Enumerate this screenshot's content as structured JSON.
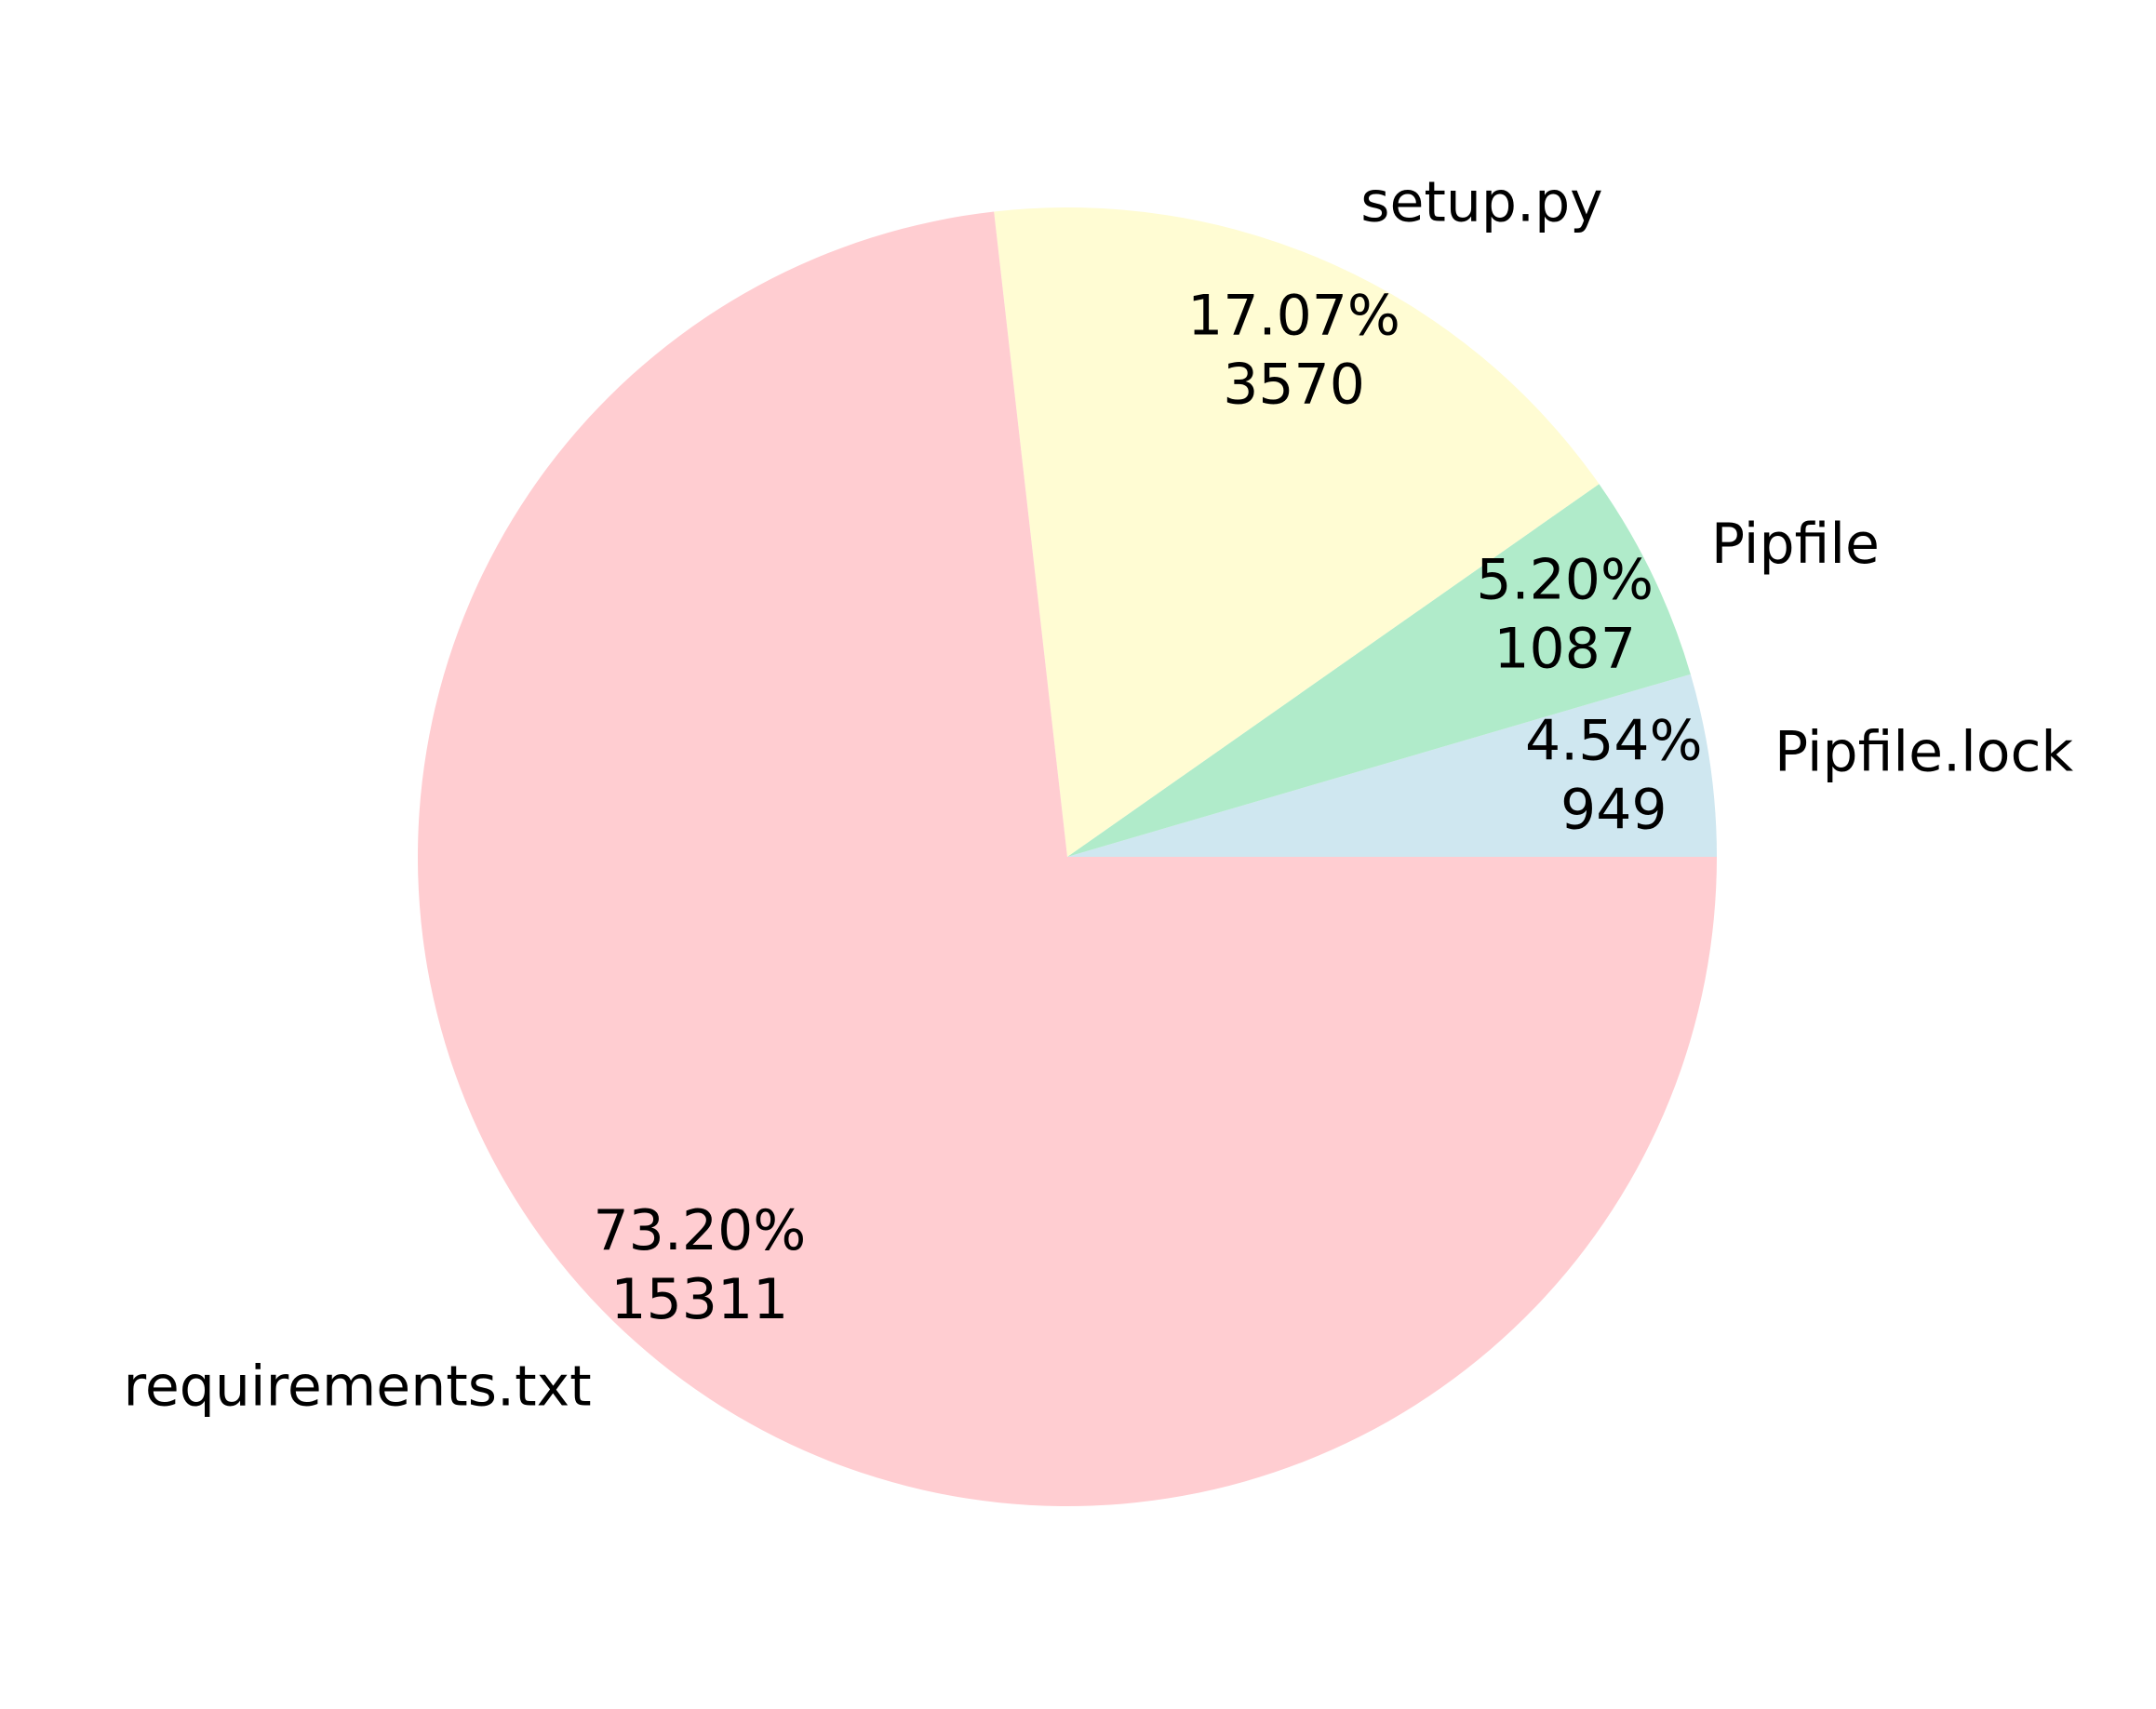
{
  "chart_data": {
    "type": "pie",
    "categories": [
      "Pipfile.lock",
      "Pipfile",
      "setup.py",
      "requirements.txt"
    ],
    "values": [
      949,
      1087,
      3570,
      15311
    ],
    "percent_labels": [
      "4.54%",
      "5.20%",
      "17.07%",
      "73.20%"
    ],
    "count_labels": [
      "949",
      "1087",
      "3570",
      "15311"
    ],
    "colors": [
      "#cfe7f0",
      "#b0ebca",
      "#fffcd3",
      "#ffcdd1"
    ],
    "start_angle_deg": 0,
    "direction": "counterclockwise",
    "title": "",
    "legend": "none"
  }
}
